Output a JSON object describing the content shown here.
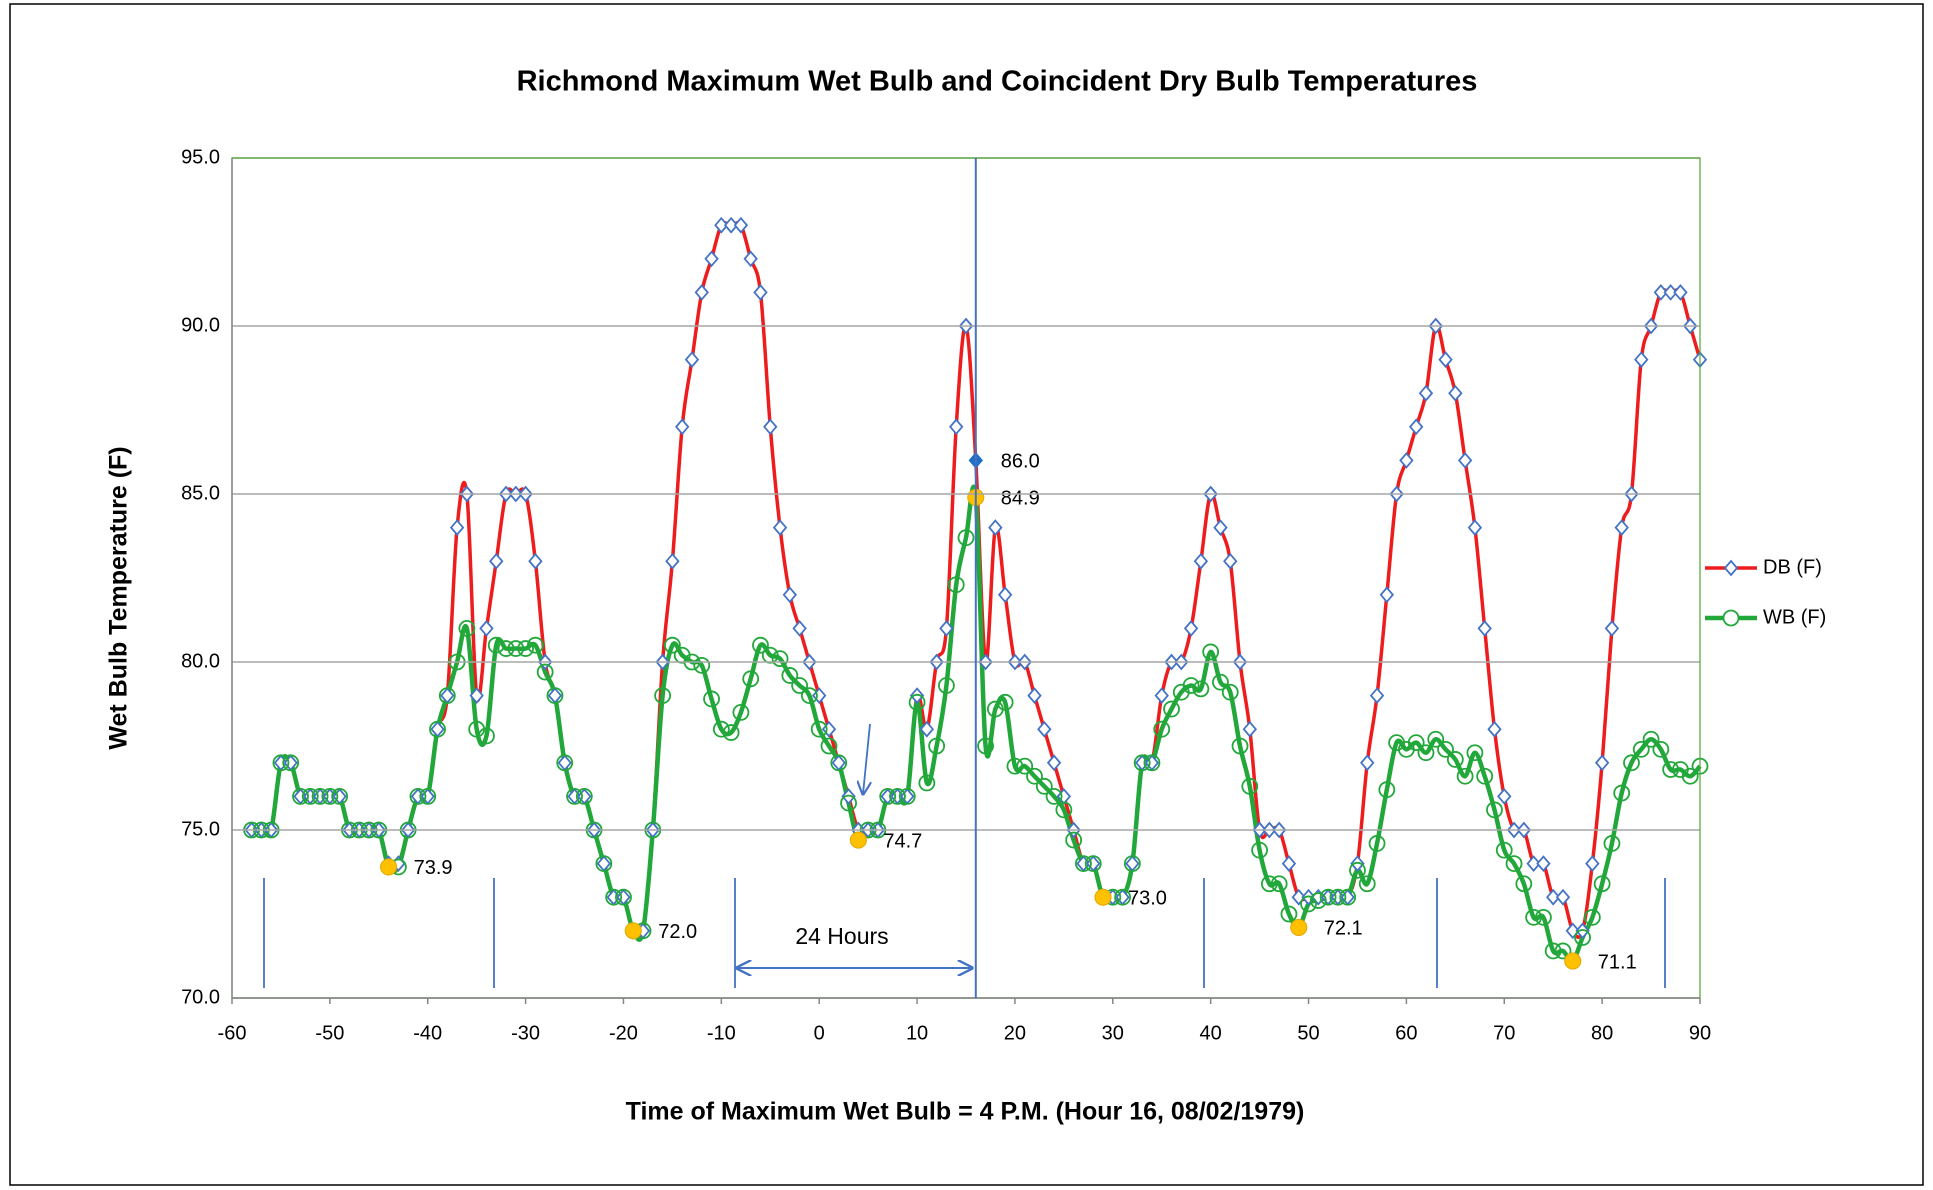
{
  "chart_data": {
    "type": "line",
    "title": "Richmond Maximum Wet Bulb and Coincident Dry Bulb Temperatures",
    "xlabel": "Time of Maximum Wet Bulb = 4 P.M. (Hour 16,  08/02/1979)",
    "ylabel": "Wet Bulb Temperature (F)",
    "annotation": "24 Hours",
    "xlim": [
      -60,
      90
    ],
    "xticks": [
      -60,
      -50,
      -40,
      -30,
      -20,
      -10,
      0,
      10,
      20,
      30,
      40,
      50,
      60,
      70,
      80,
      90
    ],
    "ylim": [
      70,
      95
    ],
    "yticks": [
      {
        "value": 70,
        "label": "70.0"
      },
      {
        "value": 75,
        "label": "75.0"
      },
      {
        "value": 80,
        "label": "80.0"
      },
      {
        "value": 85,
        "label": "85.0"
      },
      {
        "value": 90,
        "label": "90.0"
      },
      {
        "value": 95,
        "label": "95.0"
      }
    ],
    "grid": true,
    "legend": "right",
    "x": [
      -58,
      -57,
      -56,
      -55,
      -54,
      -53,
      -52,
      -51,
      -50,
      -49,
      -48,
      -47,
      -46,
      -45,
      -44,
      -43,
      -42,
      -41,
      -40,
      -39,
      -38,
      -37,
      -36,
      -35,
      -34,
      -33,
      -32,
      -31,
      -30,
      -29,
      -28,
      -27,
      -26,
      -25,
      -24,
      -23,
      -22,
      -21,
      -20,
      -19,
      -18,
      -17,
      -16,
      -15,
      -14,
      -13,
      -12,
      -11,
      -10,
      -9,
      -8,
      -7,
      -6,
      -5,
      -4,
      -3,
      -2,
      -1,
      0,
      1,
      2,
      3,
      4,
      5,
      6,
      7,
      8,
      9,
      10,
      11,
      12,
      13,
      14,
      15,
      16,
      17,
      18,
      19,
      20,
      21,
      22,
      23,
      24,
      25,
      26,
      27,
      28,
      29,
      30,
      31,
      32,
      33,
      34,
      35,
      36,
      37,
      38,
      39,
      40,
      41,
      42,
      43,
      44,
      45,
      46,
      47,
      48,
      49,
      50,
      51,
      52,
      53,
      54,
      55,
      56,
      57,
      58,
      59,
      60,
      61,
      62,
      63,
      64,
      65,
      66,
      67,
      68,
      69,
      70,
      71,
      72,
      73,
      74,
      75,
      76,
      77,
      78,
      79,
      80,
      81,
      82,
      83,
      84,
      85,
      86,
      87,
      88,
      89,
      90
    ],
    "series": [
      {
        "name": "DB (F)",
        "color": "#ee1c1c",
        "marker_color": "#4472c4",
        "marker": "diamond",
        "values": [
          75,
          75,
          75,
          77,
          77,
          76,
          76,
          76,
          76,
          76,
          75,
          75,
          75,
          75,
          74,
          74,
          75,
          76,
          76,
          78,
          79,
          84,
          85,
          79,
          81,
          83,
          85,
          85,
          85,
          83,
          80,
          79,
          77,
          76,
          76,
          75,
          74,
          73,
          73,
          72,
          72,
          75,
          80,
          83,
          87,
          89,
          91,
          92,
          93,
          93,
          93,
          92,
          91,
          87,
          84,
          82,
          81,
          80,
          79,
          78,
          77,
          76,
          75,
          75,
          75,
          76,
          76,
          76,
          79,
          78,
          80,
          81,
          87,
          90,
          86,
          80,
          84,
          82,
          80,
          80,
          79,
          78,
          77,
          76,
          75,
          74,
          74,
          73,
          73,
          73,
          74,
          77,
          77,
          79,
          80,
          80,
          81,
          83,
          85,
          84,
          83,
          80,
          78,
          75,
          75,
          75,
          74,
          73,
          73,
          73,
          73,
          73,
          73,
          74,
          77,
          79,
          82,
          85,
          86,
          87,
          88,
          90,
          89,
          88,
          86,
          84,
          81,
          78,
          76,
          75,
          75,
          74,
          74,
          73,
          73,
          72,
          72,
          74,
          77,
          81,
          84,
          85,
          89,
          90,
          91,
          91,
          91,
          90,
          89
        ]
      },
      {
        "name": "WB (F)",
        "color": "#22a83a",
        "marker_color": "#22a83a",
        "marker": "circle",
        "values": [
          75,
          75,
          75,
          77,
          77,
          76,
          76,
          76,
          76,
          76,
          75,
          75,
          75,
          75,
          73.9,
          73.9,
          75,
          76,
          76,
          78,
          79,
          80,
          81,
          78,
          77.8,
          80.5,
          80.4,
          80.4,
          80.4,
          80.5,
          79.7,
          79,
          77,
          76,
          76,
          75,
          74,
          73,
          73,
          72,
          72,
          75,
          79,
          80.5,
          80.2,
          80,
          79.9,
          78.9,
          78,
          77.9,
          78.5,
          79.5,
          80.5,
          80.2,
          80.1,
          79.6,
          79.3,
          79,
          78,
          77.5,
          77,
          75.8,
          74.7,
          75,
          75,
          76,
          76,
          76,
          78.8,
          76.4,
          77.5,
          79.3,
          82.3,
          83.7,
          84.9,
          77.5,
          78.6,
          78.8,
          76.9,
          76.9,
          76.6,
          76.3,
          76,
          75.6,
          74.7,
          74,
          74,
          73,
          73,
          73,
          74,
          77,
          77,
          78,
          78.6,
          79.1,
          79.3,
          79.2,
          80.3,
          79.4,
          79.1,
          77.5,
          76.3,
          74.4,
          73.4,
          73.4,
          72.5,
          72.1,
          72.8,
          72.9,
          73,
          73,
          73,
          73.8,
          73.4,
          74.6,
          76.2,
          77.6,
          77.4,
          77.6,
          77.3,
          77.7,
          77.4,
          77.1,
          76.6,
          77.3,
          76.6,
          75.6,
          74.4,
          74,
          73.4,
          72.4,
          72.4,
          71.4,
          71.4,
          71.1,
          71.8,
          72.4,
          73.4,
          74.6,
          76.1,
          77,
          77.4,
          77.7,
          77.4,
          76.8,
          76.8,
          76.6,
          76.9
        ]
      }
    ],
    "wb_daily_max": {
      "color": "#ffc000",
      "x": [
        -44,
        -19,
        4,
        16,
        29,
        49,
        77
      ],
      "values": [
        73.9,
        72,
        74.7,
        84.9,
        73,
        72.1,
        71.1
      ],
      "value_labels": [
        "73.9",
        "72.0",
        "74.7",
        "84.9",
        "73.0",
        "72.1",
        "71.1"
      ]
    },
    "db_at_max": {
      "color": "#1f6fc5",
      "x": [
        16
      ],
      "values": [
        86
      ],
      "value_labels": [
        "86.0"
      ]
    }
  }
}
